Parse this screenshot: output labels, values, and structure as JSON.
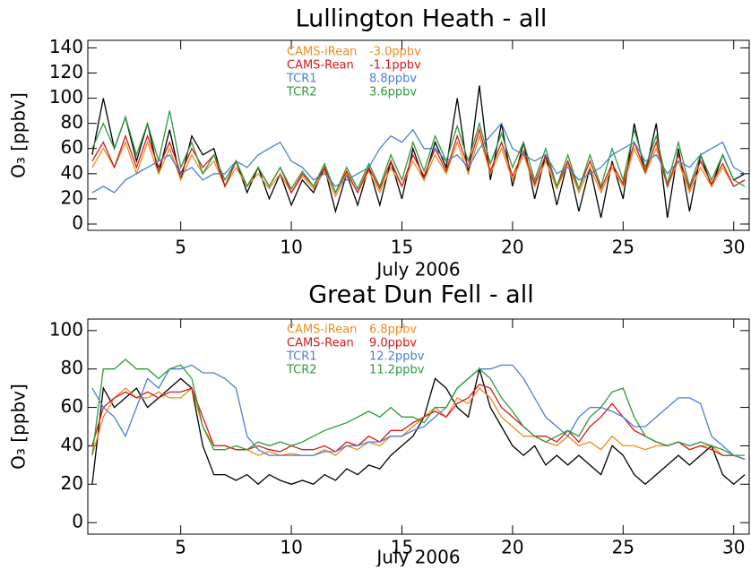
{
  "chart_data": [
    {
      "type": "line",
      "title": "Lullington Heath - all",
      "x_label": "July 2006",
      "y_label": "O₃ [ppbv]",
      "xlim": [
        0.8,
        30.7
      ],
      "xticks": [
        5,
        10,
        15,
        20,
        25,
        30
      ],
      "ylim": [
        -5,
        146
      ],
      "yticks": [
        0,
        20,
        40,
        60,
        80,
        100,
        120,
        140
      ],
      "x": [
        1,
        1.5,
        2,
        2.5,
        3,
        3.5,
        4,
        4.5,
        5,
        5.5,
        6,
        6.5,
        7,
        7.5,
        8,
        8.5,
        9,
        9.5,
        10,
        10.5,
        11,
        11.5,
        12,
        12.5,
        13,
        13.5,
        14,
        14.5,
        15,
        15.5,
        16,
        16.5,
        17,
        17.5,
        18,
        18.5,
        19,
        19.5,
        20,
        20.5,
        21,
        21.5,
        22,
        22.5,
        23,
        23.5,
        24,
        24.5,
        25,
        25.5,
        26,
        26.5,
        27,
        27.5,
        28,
        28.5,
        29,
        29.5,
        30,
        30.5
      ],
      "series": [
        {
          "color": "#000000",
          "values": [
            55,
            100,
            60,
            85,
            50,
            80,
            40,
            75,
            35,
            70,
            55,
            60,
            30,
            50,
            25,
            45,
            20,
            40,
            15,
            35,
            25,
            45,
            10,
            40,
            15,
            45,
            15,
            50,
            20,
            60,
            35,
            65,
            45,
            100,
            40,
            110,
            35,
            80,
            30,
            65,
            20,
            55,
            15,
            50,
            10,
            45,
            5,
            50,
            20,
            80,
            40,
            80,
            5,
            60,
            10,
            55,
            30,
            55,
            35,
            40
          ]
        },
        {
          "name": "CAMS-iRean",
          "bias": {
            "value": -3.0,
            "label": "-3.0ppbv"
          },
          "color": "#f08a1c",
          "values": [
            45,
            60,
            45,
            65,
            40,
            65,
            40,
            60,
            35,
            55,
            40,
            50,
            30,
            45,
            30,
            40,
            28,
            40,
            25,
            38,
            28,
            42,
            22,
            40,
            25,
            42,
            25,
            45,
            30,
            50,
            35,
            55,
            40,
            65,
            40,
            70,
            40,
            60,
            35,
            55,
            30,
            50,
            28,
            48,
            25,
            45,
            25,
            45,
            30,
            60,
            40,
            60,
            30,
            50,
            25,
            45,
            30,
            45,
            30,
            35
          ]
        },
        {
          "name": "CAMS-Rean",
          "bias": {
            "value": -1.1,
            "label": "-1.1ppbv"
          },
          "color": "#d7191c",
          "values": [
            50,
            65,
            45,
            70,
            45,
            70,
            45,
            65,
            40,
            60,
            45,
            55,
            30,
            50,
            30,
            45,
            30,
            45,
            25,
            40,
            30,
            45,
            25,
            42,
            25,
            45,
            28,
            50,
            30,
            55,
            38,
            60,
            42,
            70,
            45,
            75,
            42,
            65,
            38,
            58,
            32,
            55,
            30,
            50,
            28,
            50,
            28,
            48,
            32,
            65,
            42,
            65,
            30,
            55,
            28,
            50,
            32,
            48,
            30,
            35
          ]
        },
        {
          "name": "TCR1",
          "bias": {
            "value": 8.8,
            "label": "8.8ppbv"
          },
          "color": "#4a7fd6",
          "values": [
            25,
            30,
            25,
            35,
            40,
            45,
            50,
            55,
            40,
            45,
            35,
            40,
            40,
            50,
            45,
            55,
            60,
            65,
            50,
            45,
            35,
            40,
            30,
            35,
            40,
            45,
            60,
            70,
            65,
            75,
            60,
            60,
            50,
            55,
            45,
            60,
            70,
            80,
            60,
            55,
            50,
            55,
            40,
            45,
            35,
            40,
            45,
            55,
            60,
            65,
            50,
            55,
            40,
            50,
            45,
            55,
            60,
            65,
            45,
            40
          ]
        },
        {
          "name": "TCR2",
          "bias": {
            "value": 3.6,
            "label": "3.6ppbv"
          },
          "color": "#2e9a3a",
          "values": [
            60,
            80,
            60,
            85,
            55,
            80,
            50,
            90,
            45,
            65,
            40,
            55,
            35,
            50,
            30,
            45,
            30,
            45,
            28,
            42,
            30,
            48,
            25,
            45,
            28,
            48,
            30,
            55,
            35,
            65,
            42,
            70,
            50,
            78,
            50,
            80,
            48,
            72,
            45,
            65,
            35,
            60,
            30,
            55,
            28,
            55,
            30,
            60,
            35,
            75,
            45,
            70,
            32,
            65,
            30,
            55,
            35,
            55,
            35,
            30
          ]
        }
      ]
    },
    {
      "type": "line",
      "title": "Great Dun Fell - all",
      "x_label": "July 2006",
      "y_label": "O₃ [ppbv]",
      "xlim": [
        0.8,
        30.7
      ],
      "xticks": [
        5,
        10,
        15,
        20,
        25,
        30
      ],
      "ylim": [
        -6,
        106
      ],
      "yticks": [
        0,
        20,
        40,
        60,
        80,
        100
      ],
      "x": [
        1,
        1.5,
        2,
        2.5,
        3,
        3.5,
        4,
        4.5,
        5,
        5.5,
        6,
        6.5,
        7,
        7.5,
        8,
        8.5,
        9,
        9.5,
        10,
        10.5,
        11,
        11.5,
        12,
        12.5,
        13,
        13.5,
        14,
        14.5,
        15,
        15.5,
        16,
        16.5,
        17,
        17.5,
        18,
        18.5,
        19,
        19.5,
        20,
        20.5,
        21,
        21.5,
        22,
        22.5,
        23,
        23.5,
        24,
        24.5,
        25,
        25.5,
        26,
        26.5,
        27,
        27.5,
        28,
        28.5,
        29,
        29.5,
        30,
        30.5
      ],
      "series": [
        {
          "color": "#000000",
          "values": [
            20,
            70,
            60,
            65,
            70,
            60,
            65,
            70,
            75,
            70,
            40,
            25,
            25,
            22,
            25,
            20,
            25,
            22,
            20,
            22,
            20,
            25,
            22,
            28,
            25,
            30,
            28,
            35,
            40,
            45,
            55,
            75,
            70,
            60,
            55,
            80,
            60,
            50,
            40,
            35,
            40,
            30,
            35,
            30,
            35,
            30,
            25,
            40,
            35,
            25,
            20,
            25,
            30,
            35,
            30,
            35,
            40,
            25,
            20,
            25
          ]
        },
        {
          "name": "CAMS-iRean",
          "bias": {
            "value": 6.8,
            "label": "6.8ppbv"
          },
          "color": "#f08a1c",
          "values": [
            35,
            55,
            65,
            70,
            65,
            65,
            68,
            65,
            65,
            70,
            50,
            40,
            40,
            38,
            38,
            35,
            37,
            35,
            36,
            35,
            35,
            38,
            35,
            40,
            38,
            42,
            40,
            45,
            45,
            50,
            55,
            60,
            55,
            65,
            62,
            70,
            65,
            55,
            50,
            45,
            45,
            42,
            40,
            45,
            40,
            42,
            38,
            45,
            40,
            40,
            38,
            40,
            40,
            42,
            38,
            40,
            40,
            35,
            35,
            33
          ]
        },
        {
          "name": "CAMS-Rean",
          "bias": {
            "value": 9.0,
            "label": "9.0ppbv"
          },
          "color": "#d7191c",
          "values": [
            40,
            60,
            65,
            68,
            65,
            68,
            65,
            68,
            68,
            70,
            55,
            40,
            40,
            38,
            38,
            40,
            38,
            37,
            40,
            38,
            38,
            40,
            37,
            42,
            40,
            45,
            42,
            48,
            48,
            52,
            55,
            58,
            55,
            62,
            65,
            72,
            70,
            60,
            55,
            50,
            45,
            45,
            42,
            48,
            42,
            50,
            55,
            62,
            55,
            48,
            45,
            42,
            40,
            42,
            38,
            40,
            38,
            35,
            35,
            33
          ]
        },
        {
          "name": "TCR1",
          "bias": {
            "value": 12.2,
            "label": "12.2ppbv"
          },
          "color": "#4a7fd6",
          "values": [
            70,
            60,
            55,
            45,
            60,
            75,
            70,
            80,
            80,
            82,
            78,
            78,
            75,
            70,
            45,
            38,
            35,
            35,
            35,
            35,
            35,
            37,
            37,
            40,
            40,
            42,
            42,
            45,
            45,
            48,
            50,
            55,
            60,
            70,
            75,
            80,
            80,
            82,
            82,
            75,
            65,
            55,
            50,
            45,
            55,
            60,
            60,
            58,
            55,
            50,
            50,
            55,
            60,
            65,
            65,
            62,
            45,
            40,
            35,
            33
          ]
        },
        {
          "name": "TCR2",
          "bias": {
            "value": 11.2,
            "label": "11.2ppbv"
          },
          "color": "#2e9a3a",
          "values": [
            35,
            80,
            80,
            85,
            80,
            80,
            75,
            80,
            82,
            75,
            50,
            38,
            38,
            40,
            38,
            42,
            40,
            42,
            40,
            42,
            45,
            48,
            50,
            52,
            55,
            58,
            55,
            60,
            55,
            55,
            52,
            60,
            60,
            70,
            75,
            80,
            75,
            65,
            58,
            50,
            45,
            42,
            45,
            48,
            45,
            55,
            60,
            68,
            70,
            55,
            45,
            42,
            40,
            42,
            40,
            42,
            40,
            38,
            35,
            35
          ]
        }
      ]
    }
  ]
}
